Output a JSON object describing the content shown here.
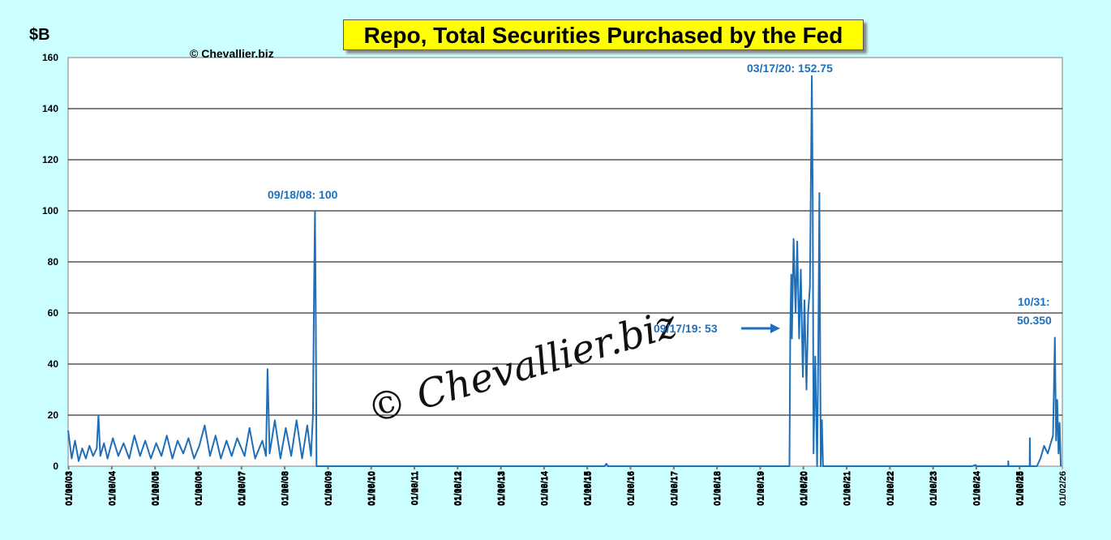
{
  "chart_data": {
    "type": "line",
    "title": "Repo, Total Securities Purchased by the Fed",
    "unit_label": "$B",
    "copyright": "© Chevallier.biz",
    "watermark": "© Chevallier.biz",
    "ylim": [
      0,
      160
    ],
    "yticks": [
      0,
      20,
      40,
      60,
      80,
      100,
      120,
      140,
      160
    ],
    "grid": true,
    "xtick_labels": [
      "01/02/03",
      "01/06/03",
      "01/10/03",
      "01/02/04",
      "01/06/04",
      "01/10/04",
      "01/02/05",
      "01/06/05",
      "01/10/05",
      "01/02/06",
      "01/06/06",
      "01/10/06",
      "01/02/07",
      "01/06/07",
      "01/10/07",
      "01/02/08",
      "01/06/08",
      "01/10/08",
      "01/02/09",
      "01/06/09",
      "01/10/09",
      "01/02/10",
      "01/06/10",
      "01/10/10",
      "01/02/11",
      "01/06/11",
      "01/10/11",
      "01/02/12",
      "01/06/12",
      "01/10/12",
      "01/02/13",
      "01/06/13",
      "01/10/13",
      "01/02/14",
      "01/06/14",
      "01/10/14",
      "01/02/15",
      "01/06/15",
      "01/10/15",
      "01/02/16",
      "01/06/16",
      "01/10/16",
      "01/02/17",
      "01/06/17",
      "01/10/17",
      "01/02/18",
      "01/06/18",
      "01/10/18",
      "01/02/19",
      "01/06/19",
      "01/10/19",
      "01/02/20",
      "01/06/20",
      "01/10/20",
      "01/02/21",
      "01/06/21",
      "01/10/21",
      "01/02/22",
      "01/06/22",
      "01/10/22",
      "01/02/23",
      "01/06/23",
      "01/10/23",
      "01/02/24",
      "01/06/24",
      "01/10/24",
      "01/02/25",
      "01/06/25",
      "01/10/25",
      "01/02/26"
    ],
    "series": [
      {
        "color": "#1f6fb8",
        "points": [
          [
            "01/02/03",
            14
          ],
          [
            "02/01/03",
            3
          ],
          [
            "03/01/03",
            10
          ],
          [
            "04/01/03",
            2
          ],
          [
            "05/01/03",
            7
          ],
          [
            "06/01/03",
            3
          ],
          [
            "07/01/03",
            8
          ],
          [
            "08/01/03",
            4
          ],
          [
            "09/01/03",
            7
          ],
          [
            "09/15/03",
            20
          ],
          [
            "10/01/03",
            4
          ],
          [
            "11/01/03",
            9
          ],
          [
            "12/01/03",
            3
          ],
          [
            "01/15/04",
            11
          ],
          [
            "03/01/04",
            4
          ],
          [
            "04/15/04",
            9
          ],
          [
            "06/01/04",
            3
          ],
          [
            "07/15/04",
            12
          ],
          [
            "09/01/04",
            4
          ],
          [
            "10/15/04",
            10
          ],
          [
            "12/01/04",
            3
          ],
          [
            "01/15/05",
            9
          ],
          [
            "03/01/05",
            4
          ],
          [
            "04/15/05",
            12
          ],
          [
            "06/01/05",
            3
          ],
          [
            "07/15/05",
            10
          ],
          [
            "09/01/05",
            5
          ],
          [
            "10/15/05",
            11
          ],
          [
            "12/01/05",
            3
          ],
          [
            "01/15/06",
            8
          ],
          [
            "03/01/06",
            16
          ],
          [
            "04/15/06",
            4
          ],
          [
            "06/01/06",
            12
          ],
          [
            "07/15/06",
            3
          ],
          [
            "09/01/06",
            10
          ],
          [
            "10/15/06",
            4
          ],
          [
            "12/01/06",
            11
          ],
          [
            "02/01/07",
            4
          ],
          [
            "03/15/07",
            15
          ],
          [
            "05/01/07",
            3
          ],
          [
            "07/01/07",
            10
          ],
          [
            "08/01/07",
            4
          ],
          [
            "08/14/07",
            38
          ],
          [
            "09/01/07",
            5
          ],
          [
            "10/15/07",
            18
          ],
          [
            "12/01/07",
            3
          ],
          [
            "01/15/08",
            15
          ],
          [
            "03/01/08",
            4
          ],
          [
            "04/15/08",
            18
          ],
          [
            "06/01/08",
            3
          ],
          [
            "07/15/08",
            16
          ],
          [
            "08/15/08",
            4
          ],
          [
            "09/01/08",
            20
          ],
          [
            "09/10/08",
            70
          ],
          [
            "09/18/08",
            100
          ],
          [
            "09/25/08",
            60
          ],
          [
            "10/01/08",
            0
          ],
          [
            "06/01/15",
            0
          ],
          [
            "06/15/15",
            1
          ],
          [
            "07/01/15",
            0
          ],
          [
            "09/10/19",
            0
          ],
          [
            "09/17/19",
            53
          ],
          [
            "09/25/19",
            75
          ],
          [
            "10/01/19",
            50
          ],
          [
            "10/15/19",
            89
          ],
          [
            "11/01/19",
            60
          ],
          [
            "11/15/19",
            88
          ],
          [
            "12/01/19",
            50
          ],
          [
            "12/15/19",
            77
          ],
          [
            "01/01/20",
            35
          ],
          [
            "01/15/20",
            65
          ],
          [
            "02/01/20",
            30
          ],
          [
            "02/15/20",
            60
          ],
          [
            "03/01/20",
            70
          ],
          [
            "03/17/20",
            152.75
          ],
          [
            "03/25/20",
            105
          ],
          [
            "04/01/20",
            5
          ],
          [
            "04/15/20",
            43
          ],
          [
            "05/01/20",
            0
          ],
          [
            "05/10/20",
            40
          ],
          [
            "05/20/20",
            107
          ],
          [
            "06/01/20",
            0
          ],
          [
            "06/10/20",
            18
          ],
          [
            "06/20/20",
            0
          ],
          [
            "12/01/23",
            0
          ],
          [
            "12/31/23",
            0.5
          ],
          [
            "01/10/24",
            0
          ],
          [
            "10/01/24",
            0
          ],
          [
            "10/02/24",
            2
          ],
          [
            "10/05/24",
            0
          ],
          [
            "02/01/25",
            0
          ],
          [
            "04/01/25",
            0
          ],
          [
            "04/02/25",
            11
          ],
          [
            "04/05/25",
            0
          ],
          [
            "06/01/25",
            0
          ],
          [
            "07/01/25",
            3
          ],
          [
            "08/01/25",
            8
          ],
          [
            "09/01/25",
            5
          ],
          [
            "10/15/25",
            12
          ],
          [
            "10/31/25",
            50.35
          ],
          [
            "11/10/25",
            10
          ],
          [
            "11/20/25",
            26
          ],
          [
            "12/01/25",
            5
          ],
          [
            "12/10/25",
            17
          ],
          [
            "12/20/25",
            0
          ]
        ]
      }
    ],
    "annotations": [
      {
        "text": "09/18/08: 100"
      },
      {
        "text": "03/17/20: 152.75"
      },
      {
        "text": "09/17/19: 53"
      },
      {
        "text": "10/31:"
      },
      {
        "text": "50.350"
      }
    ]
  }
}
